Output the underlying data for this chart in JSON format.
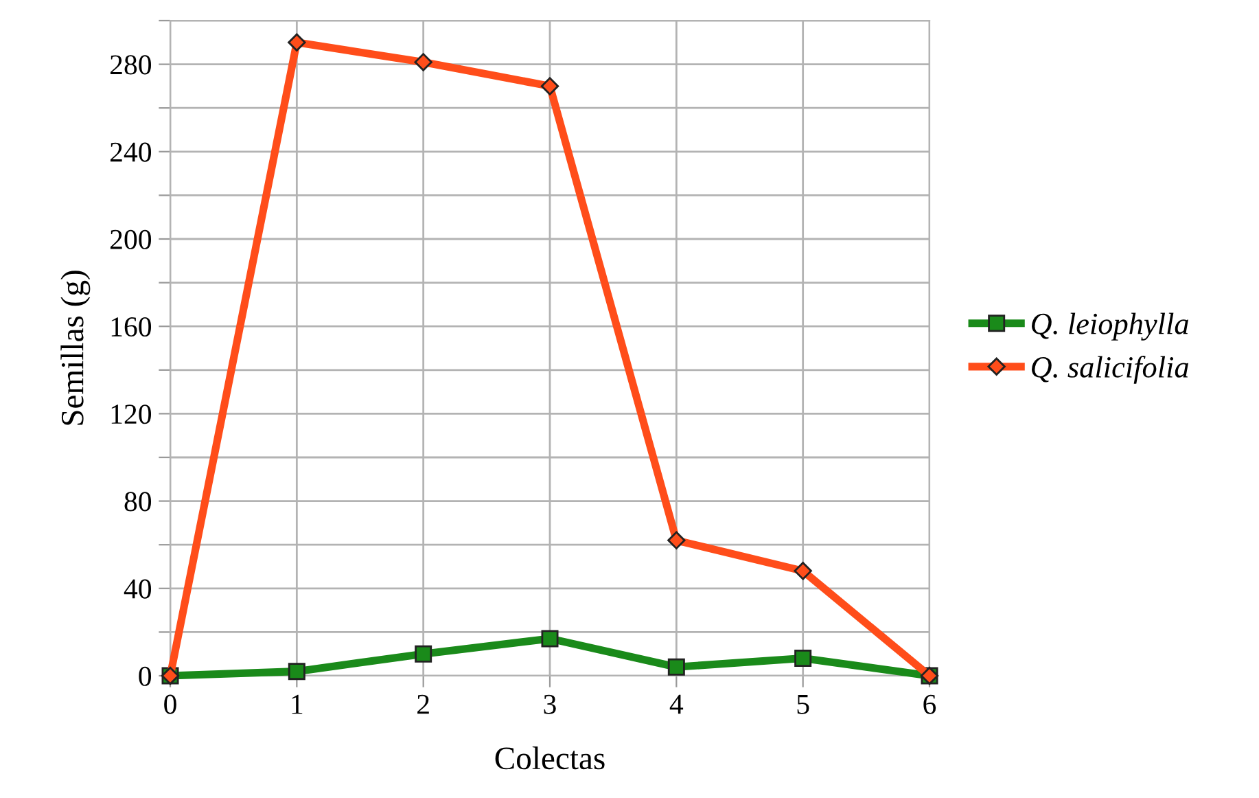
{
  "chart_data": {
    "type": "line",
    "xlabel": "Colectas",
    "ylabel": "Semillas (g)",
    "x": [
      0,
      1,
      2,
      3,
      4,
      5,
      6
    ],
    "series": [
      {
        "name": "Q. leiophylla",
        "color": "#1a8a1a",
        "marker": "square",
        "values": [
          0,
          2,
          10,
          17,
          4,
          8,
          0
        ]
      },
      {
        "name": "Q. salicifolia",
        "color": "#ff4d1a",
        "marker": "diamond",
        "values": [
          0,
          290,
          281,
          270,
          62,
          48,
          0
        ]
      }
    ],
    "xlim": [
      0,
      6
    ],
    "xticks": [
      0,
      1,
      2,
      3,
      4,
      5,
      6
    ],
    "ylim": [
      0,
      300
    ],
    "yticks": [
      0,
      {
        "value": 20,
        "label": null
      },
      40,
      {
        "value": 60,
        "label": null
      },
      80,
      {
        "value": 100,
        "label": null
      },
      120,
      {
        "value": 140,
        "label": null
      },
      160,
      {
        "value": 180,
        "label": null
      },
      200,
      {
        "value": 220,
        "label": null
      },
      240,
      {
        "value": 260,
        "label": null
      },
      280,
      {
        "value": 300,
        "label": null
      }
    ],
    "grid": true,
    "legend": "right",
    "line_style": "solid"
  }
}
